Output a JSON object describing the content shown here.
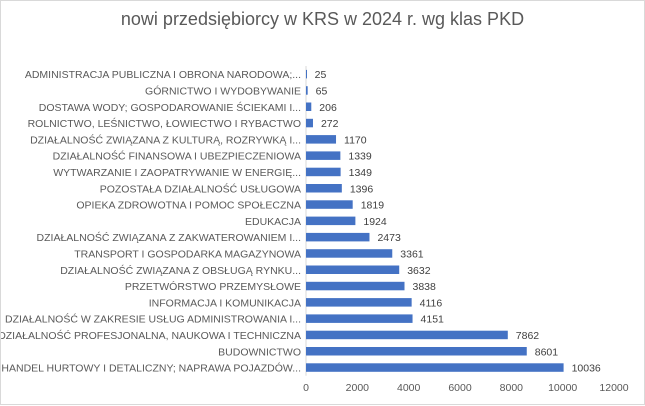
{
  "chart_data": {
    "type": "bar",
    "orientation": "horizontal",
    "title": "nowi przedsiębiorcy w KRS w 2024 r. wg klas PKD",
    "categories": [
      "ADMINISTRACJA PUBLICZNA I OBRONA NARODOWA;...",
      "GÓRNICTWO I WYDOBYWANIE",
      "DOSTAWA WODY; GOSPODAROWANIE ŚCIEKAMI I...",
      "ROLNICTWO, LEŚNICTWO, ŁOWIECTWO I RYBACTWO",
      "DZIAŁALNOŚĆ ZWIĄZANA Z KULTURĄ, ROZRYWKĄ I...",
      "DZIAŁALNOŚĆ FINANSOWA I UBEZPIECZENIOWA",
      "WYTWARZANIE I ZAOPATRYWANIE W ENERGIĘ...",
      "POZOSTAŁA DZIAŁALNOŚĆ USŁUGOWA",
      "OPIEKA ZDROWOTNA I POMOC SPOŁECZNA",
      "EDUKACJA",
      "DZIAŁALNOŚĆ ZWIĄZANA Z ZAKWATEROWANIEM I...",
      "TRANSPORT I GOSPODARKA MAGAZYNOWA",
      "DZIAŁALNOŚĆ ZWIĄZANA Z OBSŁUGĄ RYNKU...",
      "PRZETWÓRSTWO PRZEMYSŁOWE",
      "INFORMACJA I KOMUNIKACJA",
      "DZIAŁALNOŚĆ W ZAKRESIE USŁUG ADMINISTROWANIA I...",
      "DZIAŁALNOŚĆ PROFESJONALNA, NAUKOWA I TECHNICZNA",
      "BUDOWNICTWO",
      "HANDEL HURTOWY I DETALICZNY; NAPRAWA POJAZDÓW..."
    ],
    "values": [
      25,
      65,
      206,
      272,
      1170,
      1339,
      1349,
      1396,
      1819,
      1924,
      2473,
      3361,
      3632,
      3838,
      4116,
      4151,
      7862,
      8601,
      10036
    ],
    "xlim": [
      0,
      12000
    ],
    "xticks": [
      0,
      2000,
      4000,
      6000,
      8000,
      10000,
      12000
    ],
    "grid": false,
    "data_labels": true,
    "bar_color": "#4472C4"
  }
}
